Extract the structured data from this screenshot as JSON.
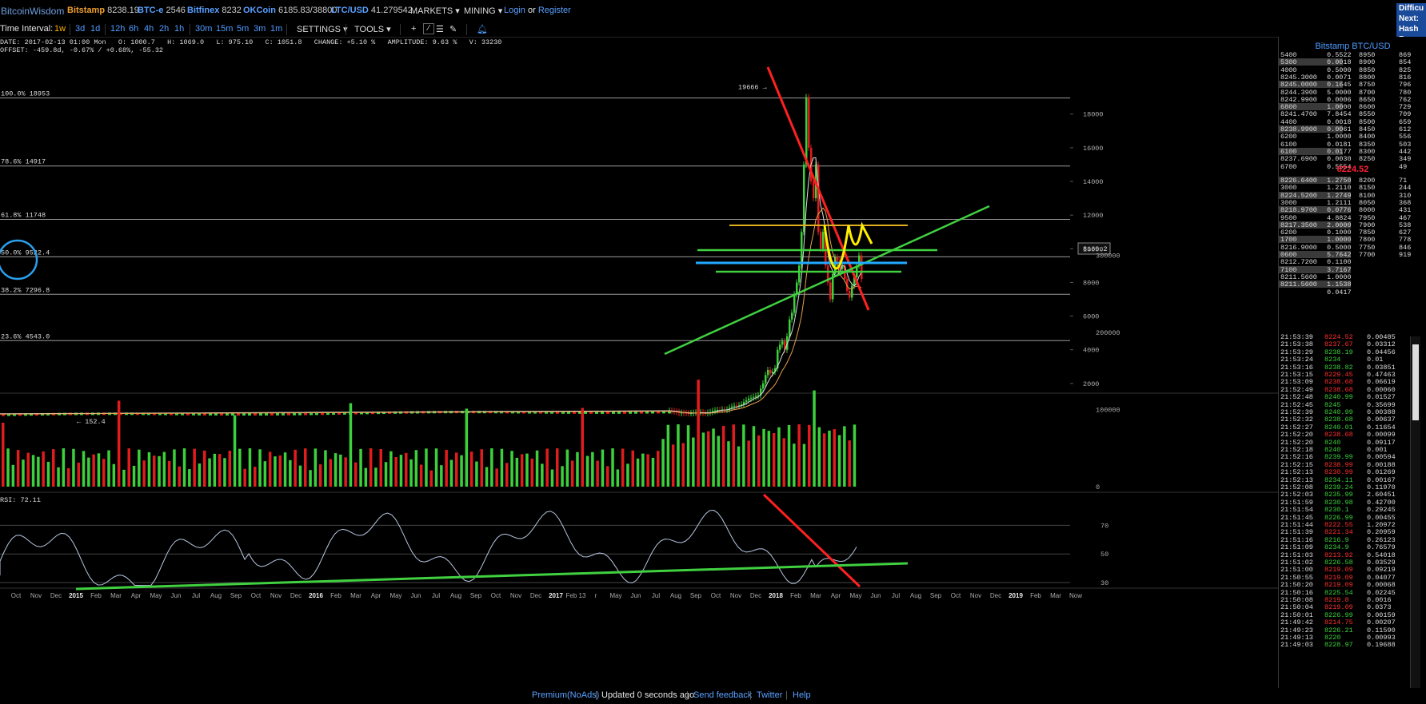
{
  "topbar": {
    "logo": "BitcoinWisdom",
    "exchanges": [
      {
        "name": "Bitstamp",
        "price": "8238.19"
      },
      {
        "name": "BTC-e",
        "price": "2546"
      },
      {
        "name": "Bitfinex",
        "price": "8232"
      },
      {
        "name": "OKCoin",
        "price": "6185.83/38800"
      },
      {
        "name": "LTC/USD",
        "price": "41.279542"
      }
    ],
    "markets": "MARKETS",
    "mining": "MINING",
    "login": "Login",
    "or": "or",
    "register": "Register",
    "corner": [
      "Difficu",
      "Next:",
      "Hash R"
    ]
  },
  "toolbar": {
    "time_interval_label": "Time Interval:",
    "intervals": [
      "1w",
      "3d",
      "1d",
      "12h",
      "6h",
      "4h",
      "2h",
      "1h",
      "30m",
      "15m",
      "5m",
      "3m",
      "1m"
    ],
    "active_interval": "1w",
    "settings": "SETTINGS",
    "tools": "TOOLS"
  },
  "ohlc": {
    "line1": "DATE: 2017-02-13 01:00 Mon   O: 1000.7   H: 1069.0   L: 975.10   C: 1051.8   CHANGE: +5.10 %   AMPLITUDE: 9.63 %   V: 33230",
    "line2": "OFFSET: -459.8d, -0.67% / +0.68%, -55.32"
  },
  "chart_data": [
    {
      "type": "line",
      "title": "Bitstamp BTC/USD",
      "ylim": [
        0,
        20000
      ],
      "y_ticks": [
        "2000",
        "4000",
        "6000",
        "8000",
        "10000",
        "12000",
        "14000",
        "16000",
        "18000"
      ],
      "x_ticks": [
        "Oct",
        "Nov",
        "Dec",
        "2015",
        "Feb",
        "Mar",
        "Apr",
        "May",
        "Jun",
        "Jul",
        "Aug",
        "Sep",
        "Oct",
        "Nov",
        "Dec",
        "2016",
        "Feb",
        "Mar",
        "Apr",
        "May",
        "Jun",
        "Jul",
        "Aug",
        "Sep",
        "Oct",
        "Nov",
        "Dec",
        "2017",
        "Feb 13",
        "r",
        "May",
        "Jun",
        "Jul",
        "Aug",
        "Sep",
        "Oct",
        "Nov",
        "Dec",
        "2018",
        "Feb",
        "Mar",
        "Apr",
        "May",
        "Jun",
        "Jul",
        "Aug",
        "Sep",
        "Oct",
        "Nov",
        "Dec",
        "2019",
        "Feb",
        "Mar",
        "Now"
      ],
      "fib_levels": [
        {
          "label": "100.0% 18953",
          "value": 18953
        },
        {
          "label": "78.6% 14917",
          "value": 14917
        },
        {
          "label": "61.8% 11748",
          "value": 11748
        },
        {
          "label": "50.0% 9522.4",
          "value": 9522.4
        },
        {
          "label": "38.2% 7296.8",
          "value": 7296.8
        },
        {
          "label": "23.6% 4543.0",
          "value": 4543.0
        }
      ],
      "annotations": {
        "peak": "19666",
        "low": "152.4",
        "current_price_tag": "8169.2"
      },
      "series": [
        {
          "values": [
            380,
            360,
            330,
            310,
            240,
            260,
            250,
            240,
            230,
            240,
            260,
            270,
            280,
            290,
            240,
            230,
            260,
            300,
            370,
            400,
            430,
            420,
            450,
            420,
            450,
            560,
            630,
            680,
            650,
            700,
            750,
            900,
            1000,
            1100,
            1150,
            1200,
            1250,
            1300,
            1700,
            2000,
            2500,
            2800,
            2600,
            2700,
            2900,
            4000,
            4300,
            4500,
            4000,
            4800,
            5800,
            6200,
            7300,
            8000,
            9000,
            11000,
            15000,
            19000,
            16000,
            14000,
            13000,
            15000,
            11000,
            10000,
            11000,
            9000,
            8000,
            7000,
            8500,
            9500,
            9300,
            8800,
            9000,
            8200,
            7500,
            7100,
            7800,
            8300,
            9000,
            9600,
            8200
          ]
        }
      ]
    },
    {
      "type": "bar",
      "title": "Volume",
      "ylim": [
        0,
        350000
      ],
      "y_ticks": [
        "0",
        "100000",
        "200000",
        "300000"
      ]
    },
    {
      "type": "line",
      "title": "RSI",
      "label": "RSI: 72.11",
      "ylim": [
        20,
        90
      ],
      "y_ticks": [
        "30",
        "50",
        "70"
      ]
    }
  ],
  "orderbook": {
    "title": "Bitstamp BTC/USD",
    "asks": [
      [
        "5400",
        "0.5522",
        "8950",
        "869"
      ],
      [
        "5300",
        "0.0018",
        "8900",
        "854"
      ],
      [
        "4000",
        "0.5000",
        "8850",
        "825"
      ],
      [
        "8245.3000",
        "0.0071",
        "8800",
        "816"
      ],
      [
        "8245.0000",
        "0.1645",
        "8750",
        "796"
      ],
      [
        "8244.3900",
        "5.0000",
        "8700",
        "780"
      ],
      [
        "8242.9900",
        "0.0006",
        "8650",
        "762"
      ],
      [
        "6800",
        "1.0000",
        "8600",
        "729"
      ],
      [
        "8241.4700",
        "7.8454",
        "8550",
        "709"
      ],
      [
        "4400",
        "0.0018",
        "8500",
        "659"
      ],
      [
        "8238.9900",
        "0.0061",
        "8450",
        "612"
      ],
      [
        "6200",
        "1.0000",
        "8400",
        "556"
      ],
      [
        "6100",
        "0.0181",
        "8350",
        "503"
      ],
      [
        "6100",
        "0.0177",
        "8300",
        "442"
      ],
      [
        "8237.6900",
        "0.0030",
        "8250",
        "349"
      ],
      [
        "6700",
        "0.5554",
        "",
        "49"
      ]
    ],
    "mid_price": "8224.52",
    "bids": [
      [
        "8226.6400",
        "1.2750",
        "8200",
        "71"
      ],
      [
        "3000",
        "1.2110",
        "8150",
        "244"
      ],
      [
        "8224.5200",
        "1.2749",
        "8100",
        "310"
      ],
      [
        "3000",
        "1.2111",
        "8050",
        "368"
      ],
      [
        "8218.9700",
        "0.0776",
        "8000",
        "431"
      ],
      [
        "9500",
        "4.8824",
        "7950",
        "467"
      ],
      [
        "8217.3500",
        "2.0000",
        "7900",
        "538"
      ],
      [
        "6200",
        "0.1000",
        "7850",
        "627"
      ],
      [
        "1700",
        "1.0000",
        "7800",
        "778"
      ],
      [
        "8216.9000",
        "0.5000",
        "7750",
        "846"
      ],
      [
        "0600",
        "5.7642",
        "7700",
        "919"
      ],
      [
        "8212.7200",
        "0.1100",
        "",
        ""
      ],
      [
        "7100",
        "3.7167",
        "",
        ""
      ],
      [
        "8211.5600",
        "1.0000",
        "",
        ""
      ],
      [
        "8211.5600",
        "1.1538",
        "",
        ""
      ],
      [
        "",
        "0.0417",
        "",
        ""
      ]
    ]
  },
  "trades": [
    [
      "21:53:39",
      "8224.52",
      "0.00485",
      "r"
    ],
    [
      "21:53:38",
      "8237.67",
      "0.03312",
      "r"
    ],
    [
      "21:53:29",
      "8238.19",
      "0.04456",
      "g"
    ],
    [
      "21:53:24",
      "8234",
      "0.01",
      "g"
    ],
    [
      "21:53:16",
      "8238.82",
      "0.03851",
      "g"
    ],
    [
      "21:53:15",
      "8229.45",
      "0.47463",
      "r"
    ],
    [
      "21:53:09",
      "8238.68",
      "0.06619",
      "r"
    ],
    [
      "21:52:49",
      "8238.68",
      "0.00060",
      "r"
    ],
    [
      "21:52:48",
      "8240.99",
      "0.01527",
      "g"
    ],
    [
      "21:52:45",
      "8245",
      "0.35699",
      "g"
    ],
    [
      "21:52:39",
      "8240.99",
      "0.00388",
      "g"
    ],
    [
      "21:52:32",
      "8238.68",
      "0.00637",
      "g"
    ],
    [
      "21:52:27",
      "8240.01",
      "0.11654",
      "g"
    ],
    [
      "21:52:20",
      "8238.68",
      "0.00099",
      "r"
    ],
    [
      "21:52:20",
      "8240",
      "0.09117",
      "g"
    ],
    [
      "21:52:18",
      "8240",
      "0.001",
      "g"
    ],
    [
      "21:52:16",
      "8239.99",
      "0.00594",
      "g"
    ],
    [
      "21:52:15",
      "8238.99",
      "0.00188",
      "r"
    ],
    [
      "21:52:13",
      "8230.99",
      "0.01269",
      "r"
    ],
    [
      "21:52:13",
      "8234.11",
      "0.00167",
      "g"
    ],
    [
      "21:52:08",
      "8239.24",
      "0.11970",
      "g"
    ],
    [
      "21:52:03",
      "8235.99",
      "2.60451",
      "g"
    ],
    [
      "21:51:59",
      "8230.98",
      "0.42700",
      "g"
    ],
    [
      "21:51:54",
      "8230.1",
      "0.29245",
      "g"
    ],
    [
      "21:51:45",
      "8226.99",
      "0.00455",
      "g"
    ],
    [
      "21:51:44",
      "8222.55",
      "1.20972",
      "r"
    ],
    [
      "21:51:39",
      "8221.34",
      "0.20959",
      "r"
    ],
    [
      "21:51:16",
      "8216.9",
      "0.26123",
      "g"
    ],
    [
      "21:51:09",
      "8234.9",
      "0.76579",
      "g"
    ],
    [
      "21:51:03",
      "8213.92",
      "0.54018",
      "r"
    ],
    [
      "21:51:02",
      "8226.58",
      "0.03529",
      "g"
    ],
    [
      "21:51:00",
      "8219.09",
      "0.09219",
      "r"
    ],
    [
      "21:50:55",
      "8219.09",
      "0.04077",
      "r"
    ],
    [
      "21:50:20",
      "8219.09",
      "0.00068",
      "r"
    ],
    [
      "21:50:16",
      "8225.54",
      "0.02245",
      "g"
    ],
    [
      "21:50:08",
      "8219.8",
      "0.0016",
      "r"
    ],
    [
      "21:50:04",
      "8219.09",
      "0.0373",
      "r"
    ],
    [
      "21:50:01",
      "8226.99",
      "0.00159",
      "g"
    ],
    [
      "21:49:42",
      "8214.75",
      "0.00207",
      "r"
    ],
    [
      "21:49:23",
      "8226.21",
      "0.11590",
      "g"
    ],
    [
      "21:49:13",
      "8220",
      "0.00993",
      "g"
    ],
    [
      "21:49:03",
      "8228.97",
      "0.19688",
      "g"
    ]
  ],
  "footer": {
    "premium": "Premium(NoAds)",
    "updated": "Updated 0 seconds ago",
    "feedback": "Send feedback",
    "twitter": "Twitter",
    "help": "Help"
  },
  "colors": {
    "up": "#3cd13c",
    "down": "#e01c1c",
    "accent": "#4f9cff",
    "active": "#ffb000"
  }
}
